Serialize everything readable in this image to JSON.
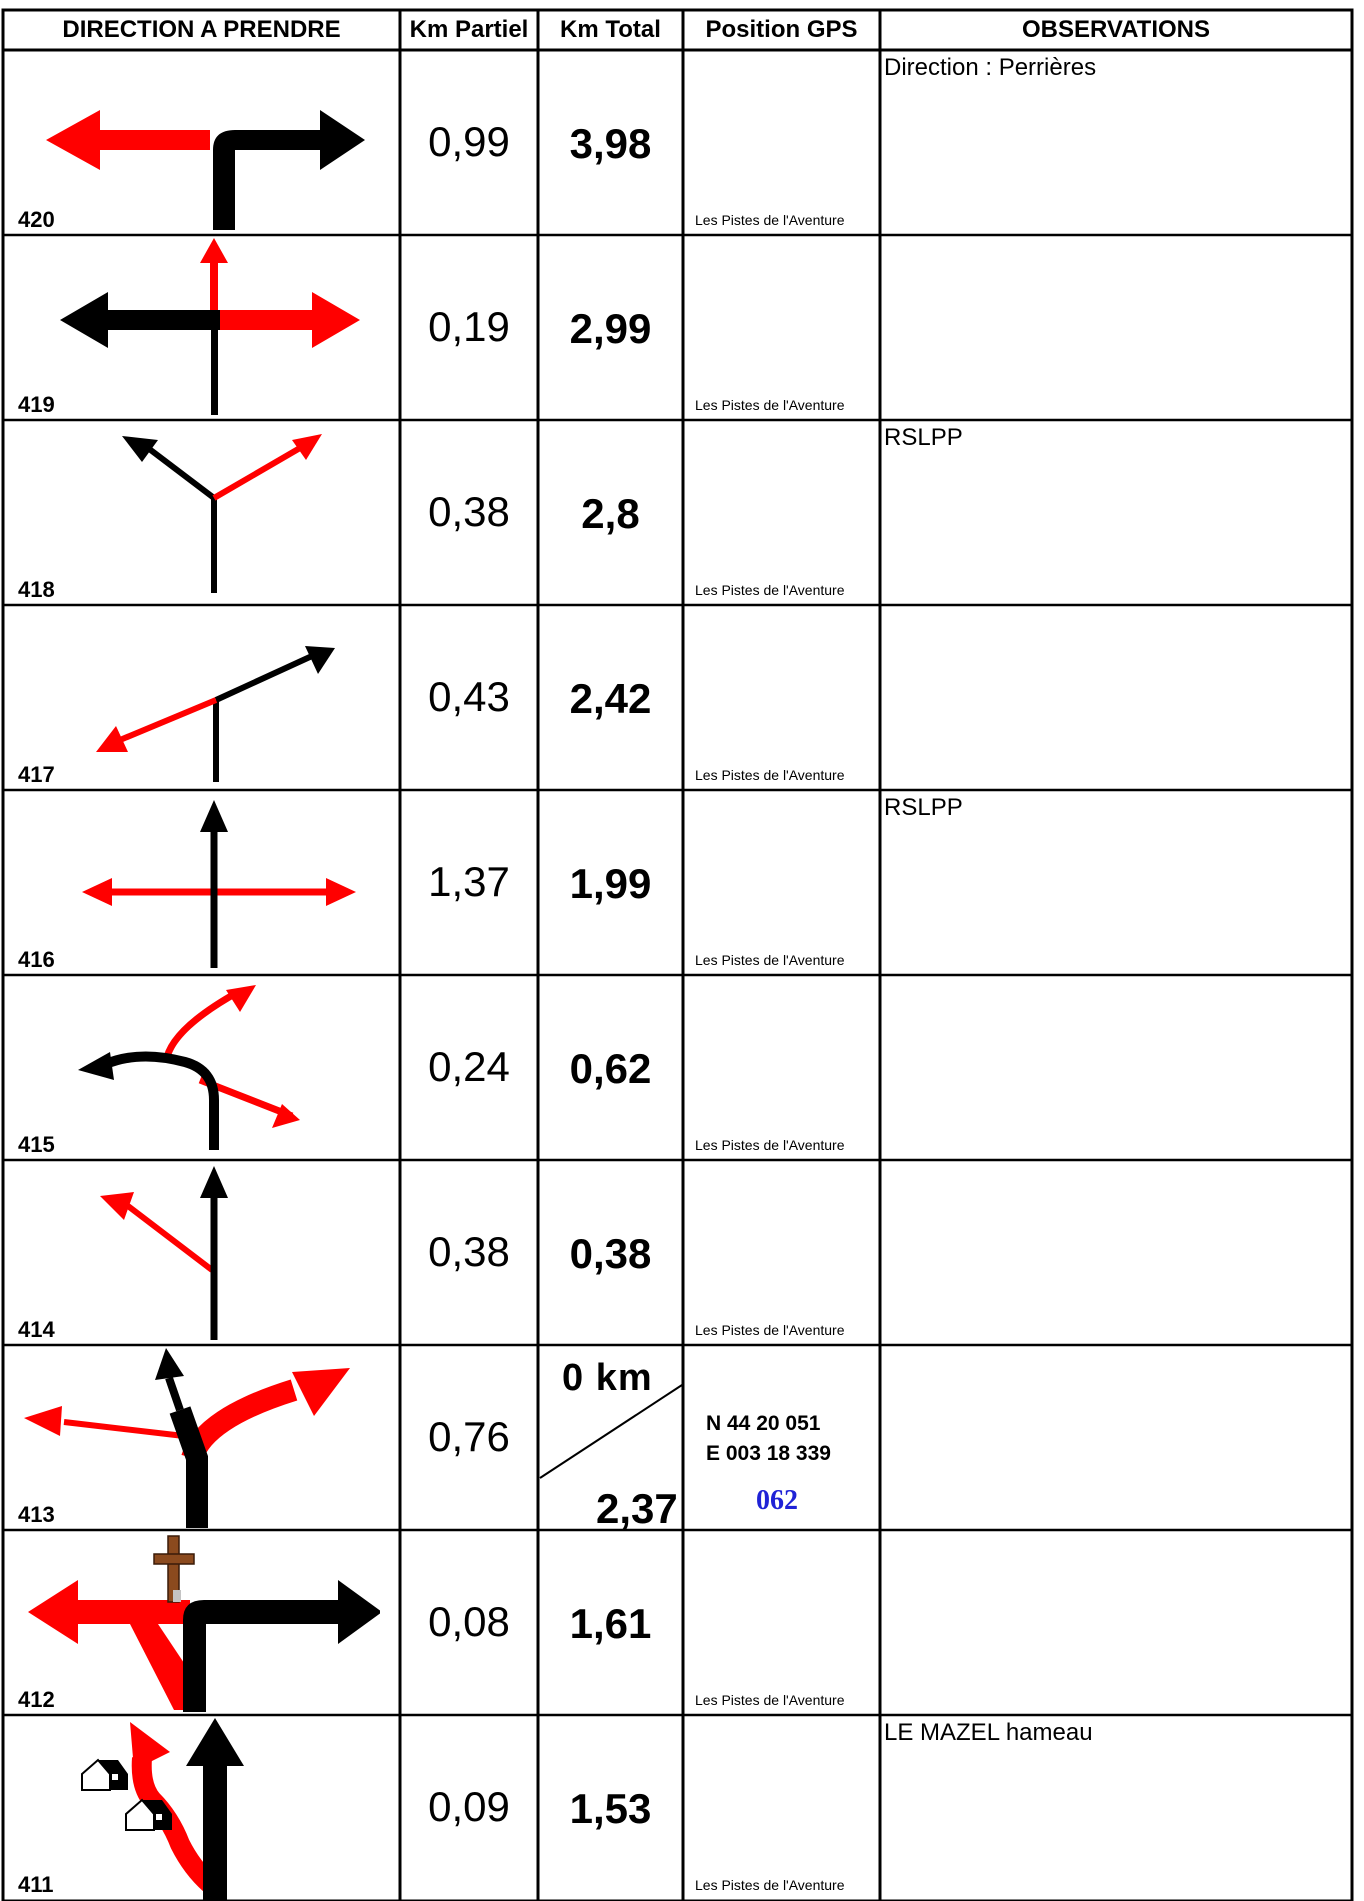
{
  "headers": {
    "direction": "DIRECTION A PRENDRE",
    "km_partiel": "Km Partiel",
    "km_total": "Km Total",
    "gps": "Position GPS",
    "observations": "OBSERVATIONS"
  },
  "brand_text": "Les Pistes de l'Aventure",
  "rows": [
    {
      "num": "420",
      "partiel": "0,99",
      "total": "3,98",
      "obs": "Direction : Perrières",
      "icon": "turn-left-red-arrow-icon"
    },
    {
      "num": "419",
      "partiel": "0,19",
      "total": "2,99",
      "obs": "",
      "icon": "crossroad-right-red-arrow-icon"
    },
    {
      "num": "418",
      "partiel": "0,38",
      "total": "2,8",
      "obs": "RSLPP",
      "icon": "fork-right-red-arrow-icon"
    },
    {
      "num": "417",
      "partiel": "0,43",
      "total": "2,42",
      "obs": "",
      "icon": "junction-left-red-arrow-icon"
    },
    {
      "num": "416",
      "partiel": "1,37",
      "total": "1,99",
      "obs": "RSLPP",
      "icon": "crossroad-straight-arrow-icon"
    },
    {
      "num": "415",
      "partiel": "0,24",
      "total": "0,62",
      "obs": "",
      "icon": "multi-fork-arrow-icon"
    },
    {
      "num": "414",
      "partiel": "0,38",
      "total": "0,38",
      "obs": "",
      "icon": "straight-with-left-branch-arrow-icon"
    },
    {
      "num": "413",
      "partiel": "0,76",
      "total_top": "0 km",
      "total": "2,37",
      "gps_n": "N  44 20 051",
      "gps_e": "E  003 18 339",
      "waypoint": "062",
      "obs": "",
      "icon": "bear-right-red-arrow-icon"
    },
    {
      "num": "412",
      "partiel": "0,08",
      "total": "1,61",
      "obs": "",
      "icon": "cross-left-red-arrow-icon"
    },
    {
      "num": "411",
      "partiel": "0,09",
      "total": "1,53",
      "obs": "LE MAZEL  hameau",
      "icon": "hamlet-left-red-arrow-icon"
    }
  ],
  "colors": {
    "red": "#ff0000",
    "black": "#000000",
    "blue": "#1f22d6",
    "cross": "#8b4a1e"
  }
}
